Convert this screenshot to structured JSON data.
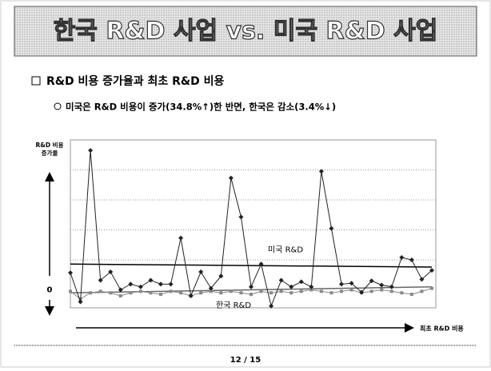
{
  "slide": {
    "title": "한국 R&D 사업 vs. 미국 R&D 사업",
    "bullet": "R&D 비용 증가율과 최초 R&D 비용",
    "sub_bullet": "미국은 R&D 비용이 증가(34.8%↑)한 반면, 한국은 감소(3.4%↓)",
    "page": "12 / 15"
  },
  "chart_data": {
    "type": "line",
    "ylabel_lines": [
      "R&D 비용",
      "증가율"
    ],
    "xlabel": "최초 R&D 비용",
    "categories": [
      null,
      null,
      null,
      null,
      null,
      null,
      null,
      null,
      null,
      null,
      null,
      null,
      null,
      null,
      null,
      null,
      null,
      null,
      null,
      null,
      null,
      null,
      null,
      null,
      null,
      null,
      null,
      null,
      null,
      null,
      null,
      null,
      null,
      null,
      null,
      null,
      null
    ],
    "series": [
      {
        "name": "미국",
        "color": "#222222",
        "values": [
          0.57,
          -0.4,
          4.65,
          0.32,
          0.6,
          0,
          0.19,
          0.1,
          0.32,
          0.19,
          0.19,
          1.73,
          -0.2,
          0.6,
          0.05,
          0.46,
          3.73,
          2.43,
          0.1,
          0.86,
          -0.54,
          0.32,
          0.1,
          0.27,
          0.1,
          3.95,
          2.05,
          0.19,
          0.22,
          -0.08,
          0.3,
          0.16,
          0.1,
          1.08,
          1.0,
          0.35,
          0.65
        ]
      },
      {
        "name": "한국",
        "color": "#888888",
        "values": [
          -0.05,
          -0.3,
          -0.1,
          -0.05,
          -0.1,
          -0.2,
          -0.1,
          -0.05,
          -0.1,
          -0.15,
          -0.05,
          -0.1,
          -0.2,
          -0.1,
          -0.05,
          -0.1,
          -0.05,
          -0.1,
          -0.15,
          -0.05,
          -0.1,
          -0.05,
          -0.1,
          -0.05,
          0,
          -0.05,
          -0.1,
          -0.05,
          0,
          -0.1,
          -0.05,
          0,
          -0.05,
          -0.1,
          -0.15,
          -0.05,
          0.05
        ]
      }
    ],
    "trendlines": [
      {
        "label": "미국 R&D",
        "values": [
          0.86,
          0.76
        ]
      },
      {
        "label": "한국 R&D",
        "values": [
          -0.1,
          0.1
        ]
      }
    ],
    "ylim": [
      -0.6,
      5
    ],
    "yticks": [
      0
    ],
    "ygrid": [
      1,
      2,
      3,
      4,
      5
    ],
    "grid": true
  }
}
